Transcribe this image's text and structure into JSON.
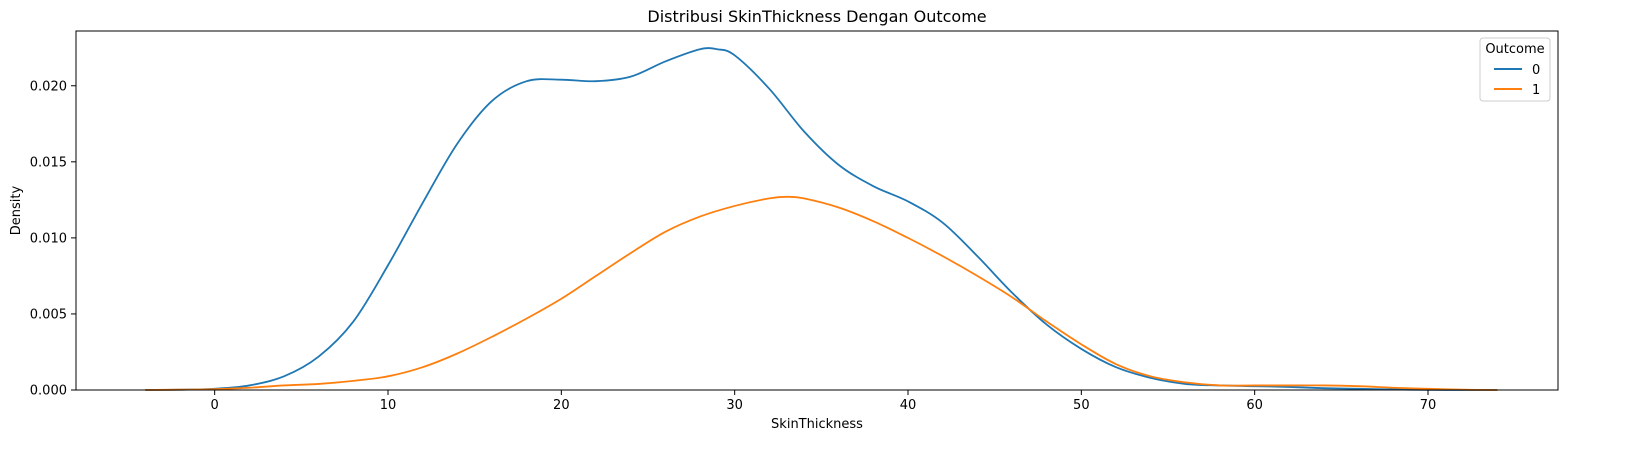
{
  "chart_data": {
    "type": "line",
    "title": "Distribusi SkinThickness Dengan Outcome",
    "xlabel": "SkinThickness",
    "ylabel": "Density",
    "xlim": [
      -8.0,
      77.5
    ],
    "ylim": [
      0.0,
      0.0236
    ],
    "xticks": [
      0,
      10,
      20,
      30,
      40,
      50,
      60,
      70
    ],
    "xtick_labels": [
      "0",
      "10",
      "20",
      "30",
      "40",
      "50",
      "60",
      "70"
    ],
    "yticks": [
      0.0,
      0.005,
      0.01,
      0.015,
      0.02
    ],
    "ytick_labels": [
      "0.000",
      "0.005",
      "0.010",
      "0.015",
      "0.020"
    ],
    "grid": false,
    "legend": {
      "title": "Outcome",
      "placement": "top-right"
    },
    "series": [
      {
        "name": "0",
        "color": "#1f77b4",
        "x": [
          -4,
          -2,
          0,
          2,
          4,
          6,
          8,
          10,
          12,
          14,
          16,
          18,
          20,
          22,
          24,
          26,
          28,
          29,
          30,
          32,
          34,
          36,
          38,
          40,
          42,
          44,
          46,
          48,
          50,
          52,
          54,
          56,
          58,
          60,
          62,
          64,
          66,
          68,
          70,
          72,
          74
        ],
        "y": [
          0.0,
          2e-05,
          8e-05,
          0.0003,
          0.0009,
          0.0022,
          0.0045,
          0.0082,
          0.0123,
          0.0162,
          0.019,
          0.0203,
          0.0204,
          0.0203,
          0.0206,
          0.0216,
          0.0224,
          0.0224,
          0.022,
          0.0198,
          0.017,
          0.0148,
          0.0134,
          0.0124,
          0.011,
          0.0088,
          0.0064,
          0.0043,
          0.0027,
          0.0015,
          0.0008,
          0.0004,
          0.0003,
          0.00025,
          0.0002,
          0.00012,
          8e-05,
          4e-05,
          1e-05,
          0.0,
          0.0
        ]
      },
      {
        "name": "1",
        "color": "#ff7f0e",
        "x": [
          -4,
          -2,
          0,
          2,
          4,
          6,
          8,
          10,
          12,
          14,
          16,
          18,
          20,
          22,
          24,
          26,
          28,
          30,
          32,
          33,
          34,
          36,
          38,
          40,
          42,
          44,
          46,
          48,
          50,
          52,
          54,
          56,
          58,
          60,
          62,
          64,
          66,
          68,
          70,
          72,
          74
        ],
        "y": [
          0.0,
          2e-05,
          6e-05,
          0.00015,
          0.0003,
          0.0004,
          0.0006,
          0.0009,
          0.0015,
          0.0024,
          0.0035,
          0.0047,
          0.006,
          0.0075,
          0.009,
          0.0104,
          0.0114,
          0.0121,
          0.0126,
          0.0127,
          0.0126,
          0.012,
          0.0111,
          0.01,
          0.0088,
          0.0075,
          0.0061,
          0.0045,
          0.003,
          0.0017,
          0.0009,
          0.0005,
          0.0003,
          0.0003,
          0.0003,
          0.0003,
          0.00025,
          0.00015,
          8e-05,
          2e-05,
          0.0
        ]
      }
    ]
  }
}
